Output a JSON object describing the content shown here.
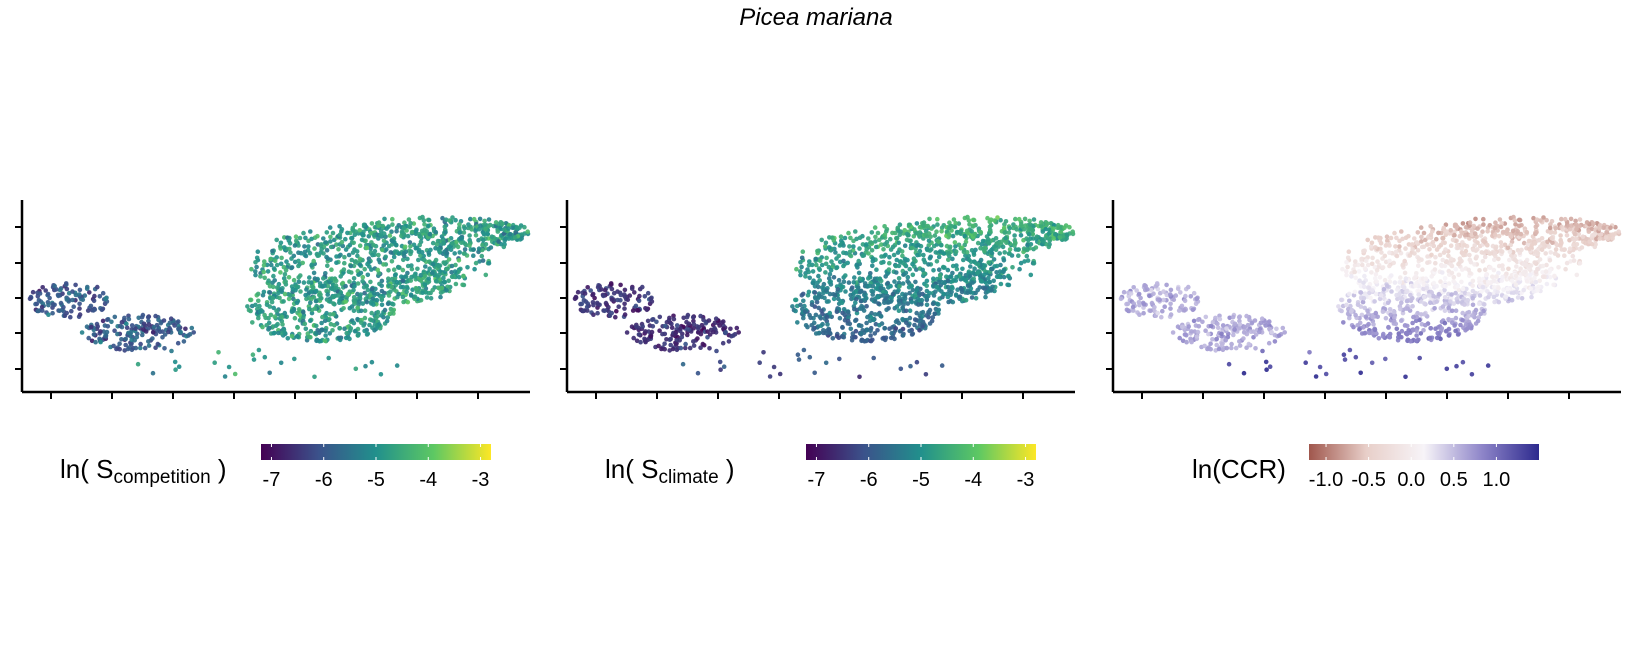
{
  "title": "Picea mariana",
  "chart_data": [
    {
      "type": "scatter",
      "title": "",
      "xlabel": "",
      "ylabel": "",
      "axes": {
        "x_ticks_labeled": false,
        "y_ticks_labeled": false,
        "grid": false
      },
      "colorbar": {
        "label_main": "ln( S",
        "label_sub": "competition",
        "label_end": " )",
        "palette": "viridis",
        "range": [
          -7.2,
          -2.8
        ],
        "ticks": [
          "-7",
          "-6",
          "-5",
          "-4",
          "-3"
        ],
        "tick_values": [
          -7,
          -6,
          -5,
          -4,
          -3
        ],
        "colors": [
          "#440154",
          "#3b528b",
          "#21908c",
          "#5dc863",
          "#fde725"
        ]
      }
    },
    {
      "type": "scatter",
      "title": "",
      "xlabel": "",
      "ylabel": "",
      "axes": {
        "x_ticks_labeled": false,
        "y_ticks_labeled": false,
        "grid": false
      },
      "colorbar": {
        "label_main": "ln( S",
        "label_sub": "climate",
        "label_end": " )",
        "palette": "viridis",
        "range": [
          -7.2,
          -2.8
        ],
        "ticks": [
          "-7",
          "-6",
          "-5",
          "-4",
          "-3"
        ],
        "tick_values": [
          -7,
          -6,
          -5,
          -4,
          -3
        ],
        "colors": [
          "#440154",
          "#3b528b",
          "#21908c",
          "#5dc863",
          "#fde725"
        ]
      }
    },
    {
      "type": "scatter",
      "title": "",
      "xlabel": "",
      "ylabel": "",
      "axes": {
        "x_ticks_labeled": false,
        "y_ticks_labeled": false,
        "grid": false
      },
      "colorbar": {
        "label_main": "ln(CCR)",
        "label_sub": "",
        "label_end": "",
        "palette": "diverging red-blue",
        "range": [
          -1.2,
          1.5
        ],
        "ticks": [
          "-1.0",
          "-0.5",
          "0.0",
          "0.5",
          "1.0"
        ],
        "tick_values": [
          -1.0,
          -0.5,
          0.0,
          0.5,
          1.0
        ],
        "colors": [
          "#a0574d",
          "#e8cfc9",
          "#f7f4f8",
          "#8f86c9",
          "#2d2a8e"
        ]
      }
    }
  ]
}
